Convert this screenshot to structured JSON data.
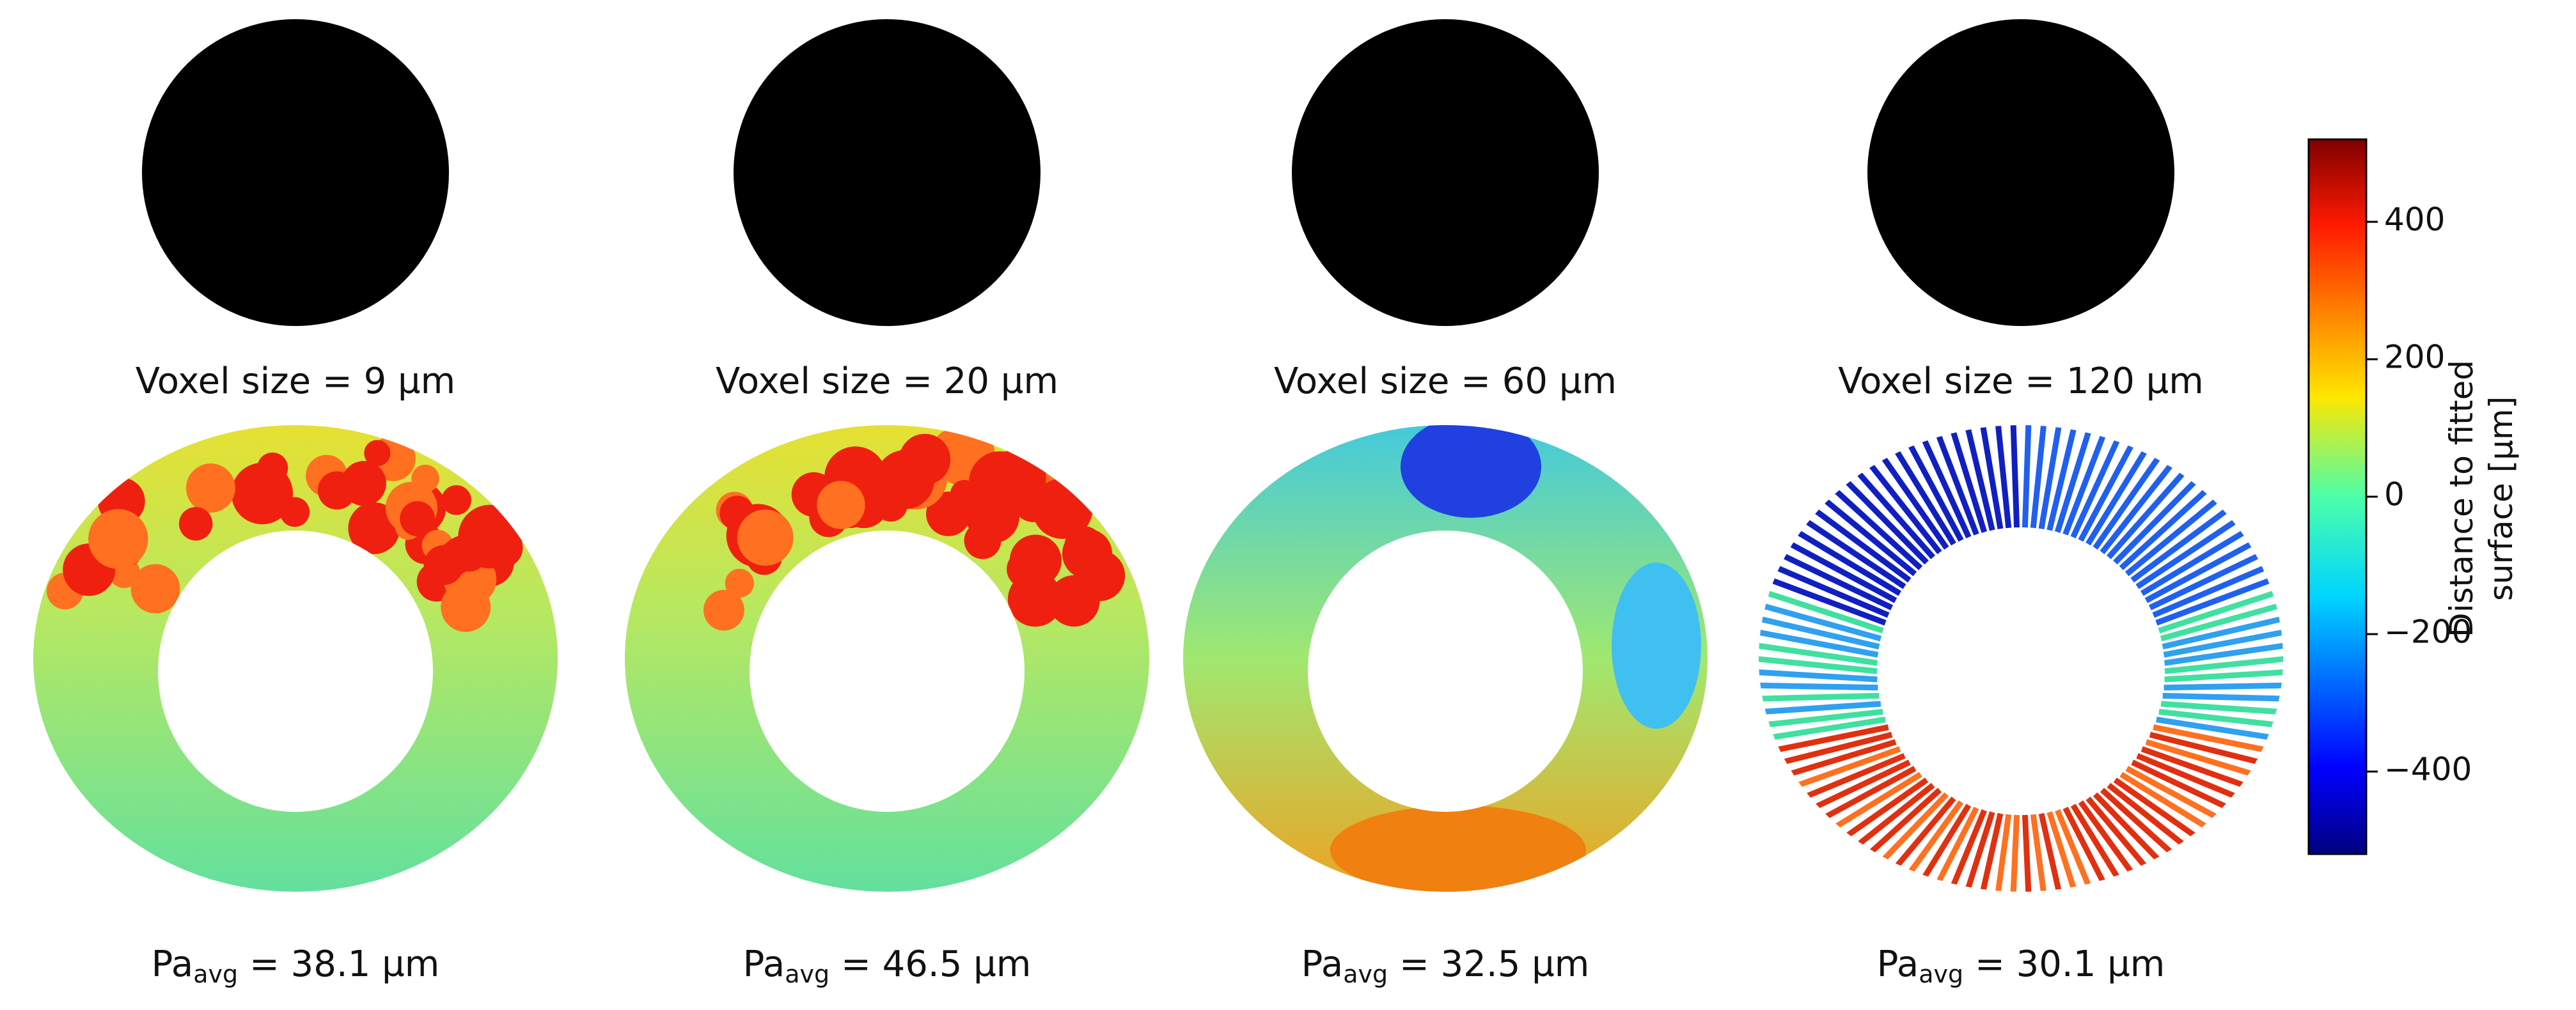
{
  "panels": [
    {
      "voxel_label": "Voxel size = 9 µm",
      "roughness": {
        "symbol": "Pa",
        "subscript": "avg",
        "text": " = 38.1 µm"
      }
    },
    {
      "voxel_label": "Voxel size = 20 µm",
      "roughness": {
        "symbol": "Pa",
        "subscript": "avg",
        "text": " = 46.5 µm"
      }
    },
    {
      "voxel_label": "Voxel size = 60 µm",
      "roughness": {
        "symbol": "Pa",
        "subscript": "avg",
        "text": " = 32.5 µm"
      }
    },
    {
      "voxel_label": "Voxel size = 120 µm",
      "roughness": {
        "symbol": "Pa",
        "subscript": "avg",
        "text": " = 30.1 µm"
      }
    }
  ],
  "colorbar": {
    "label_lines": [
      "Distance to fitted",
      "surface [µm]"
    ],
    "range": [
      -520,
      520
    ],
    "ticks": [
      400,
      200,
      0,
      {
        "value": -200,
        "label": "−200"
      },
      {
        "value": -400,
        "label": "−400"
      }
    ]
  }
}
